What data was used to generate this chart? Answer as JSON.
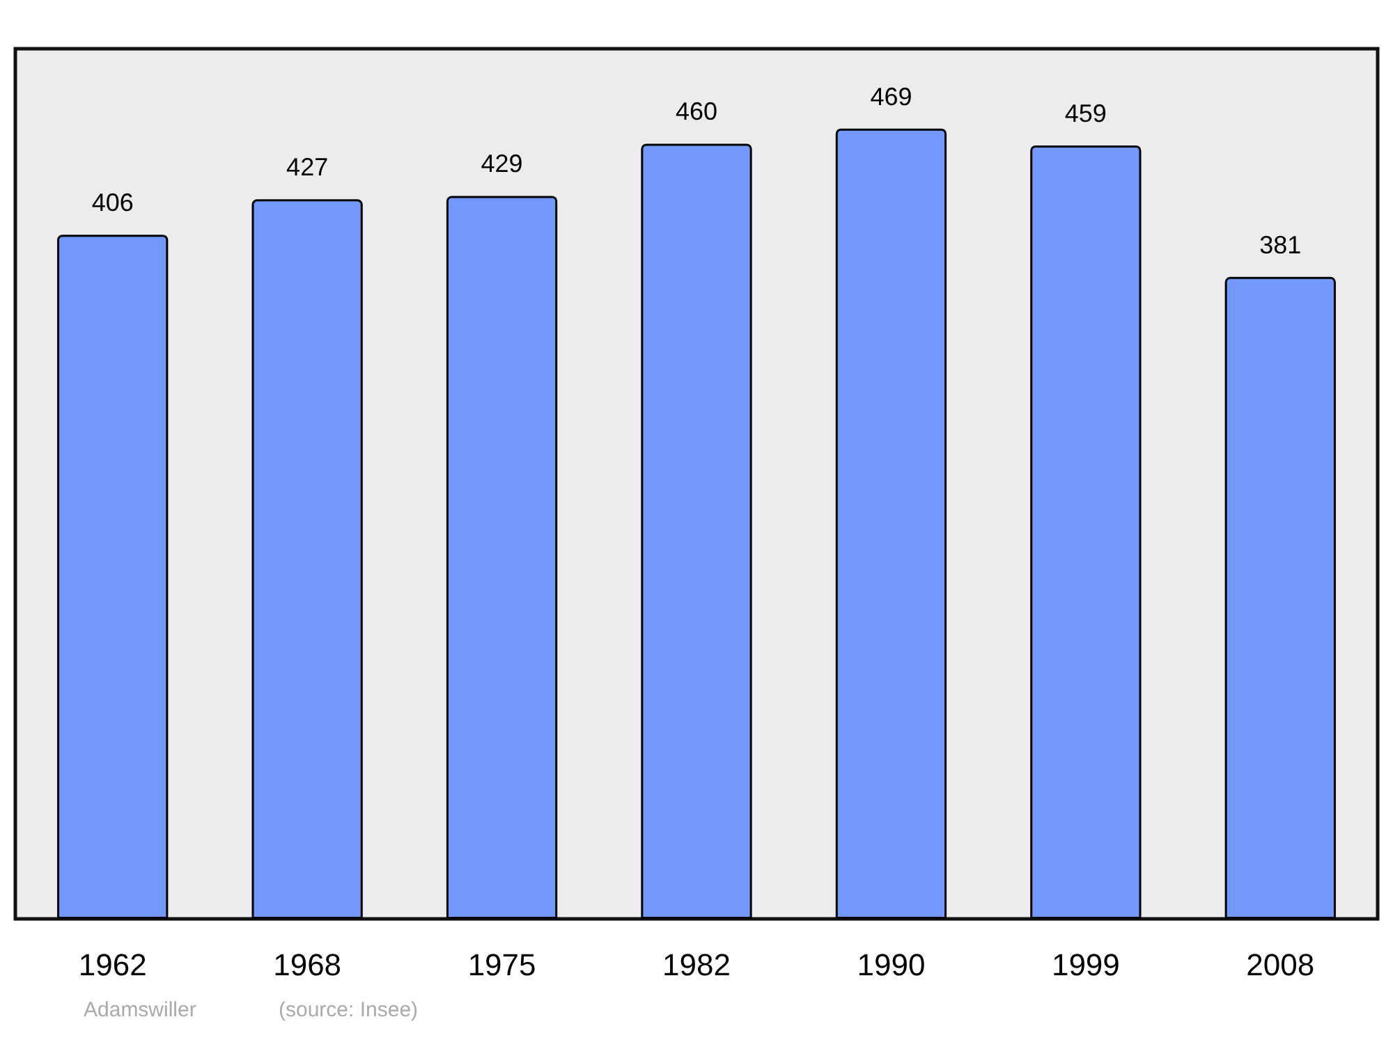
{
  "chart_data": {
    "type": "bar",
    "categories": [
      "1962",
      "1968",
      "1975",
      "1982",
      "1990",
      "1999",
      "2008"
    ],
    "values": [
      406,
      427,
      429,
      460,
      469,
      459,
      381
    ],
    "color": "#7399ff",
    "data_labels": true,
    "annotations": [
      "Adamswiller",
      "(source: Insee)"
    ]
  }
}
